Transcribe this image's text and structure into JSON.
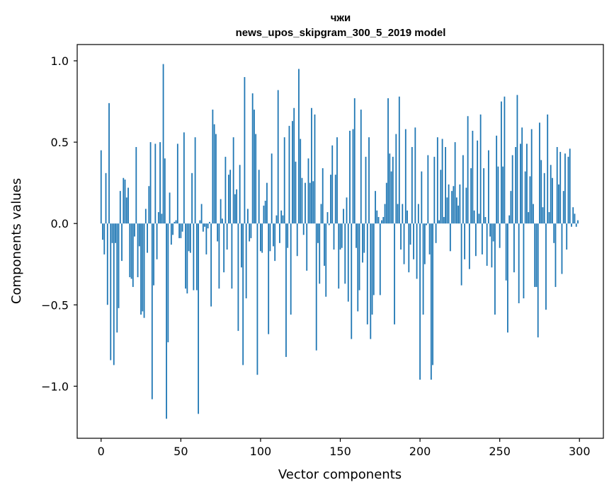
{
  "chart_data": {
    "type": "bar",
    "title": "чжи",
    "subtitle": "news_upos_skipgram_300_5_2019 model",
    "xlabel": "Vector components",
    "ylabel": "Components values",
    "xlim": [
      -15,
      315
    ],
    "ylim": [
      -1.32,
      1.1
    ],
    "xticks": [
      0,
      50,
      100,
      150,
      200,
      250,
      300
    ],
    "yticks": [
      -1.0,
      -0.5,
      0.0,
      0.5,
      1.0
    ],
    "xtick_labels": [
      "0",
      "50",
      "100",
      "150",
      "200",
      "250",
      "300"
    ],
    "ytick_labels": [
      "−1.0",
      "−0.5",
      "0.0",
      "0.5",
      "1.0"
    ],
    "grid": false,
    "color": "#1f77b4",
    "values": [
      0.45,
      -0.1,
      -0.19,
      0.31,
      -0.5,
      0.74,
      -0.84,
      -0.12,
      -0.87,
      -0.12,
      -0.67,
      -0.52,
      0.2,
      -0.23,
      0.28,
      0.27,
      0.16,
      0.22,
      -0.33,
      -0.34,
      -0.39,
      -0.08,
      0.47,
      -0.33,
      -0.14,
      -0.56,
      -0.54,
      -0.58,
      0.09,
      -0.18,
      0.23,
      0.5,
      -1.08,
      -0.38,
      0.49,
      -0.22,
      0.07,
      0.5,
      0.06,
      0.98,
      0.4,
      -1.2,
      -0.73,
      0.19,
      -0.13,
      -0.07,
      0.01,
      0.02,
      0.49,
      -0.09,
      -0.09,
      -0.05,
      0.56,
      -0.4,
      -0.43,
      -0.17,
      -0.18,
      0.31,
      -0.41,
      0.53,
      -0.41,
      -1.17,
      0.02,
      0.12,
      -0.05,
      -0.02,
      -0.19,
      -0.03,
      0.01,
      -0.51,
      0.7,
      0.61,
      0.55,
      -0.11,
      -0.4,
      0.15,
      0.03,
      -0.3,
      0.41,
      -0.16,
      0.3,
      0.33,
      -0.4,
      0.53,
      0.18,
      0.21,
      -0.66,
      0.36,
      -0.27,
      -0.87,
      0.9,
      -0.46,
      0.09,
      -0.11,
      -0.09,
      0.8,
      0.7,
      0.55,
      -0.93,
      0.33,
      -0.17,
      -0.18,
      0.11,
      0.14,
      0.25,
      -0.68,
      -0.17,
      0.43,
      -0.14,
      -0.23,
      0.05,
      0.82,
      -0.12,
      0.08,
      0.05,
      0.53,
      -0.82,
      -0.15,
      0.6,
      -0.56,
      0.63,
      0.71,
      0.38,
      -0.2,
      0.95,
      0.52,
      0.28,
      -0.07,
      0.25,
      -0.29,
      0.4,
      0.25,
      0.71,
      0.26,
      0.67,
      -0.78,
      -0.12,
      -0.37,
      0.12,
      0.34,
      -0.26,
      -0.45,
      0.07,
      -0.01,
      0.3,
      0.48,
      -0.16,
      0.3,
      0.53,
      -0.4,
      -0.16,
      -0.15,
      0.09,
      -0.37,
      0.16,
      -0.48,
      0.57,
      -0.71,
      0.58,
      0.77,
      -0.15,
      -0.54,
      -0.41,
      0.7,
      -0.24,
      -0.18,
      0.41,
      -0.62,
      0.53,
      -0.71,
      -0.56,
      -0.44,
      0.2,
      0.08,
      0.04,
      -0.44,
      0.02,
      0.04,
      0.12,
      0.25,
      0.77,
      0.43,
      0.32,
      0.41,
      -0.62,
      0.55,
      0.12,
      0.78,
      -0.16,
      0.12,
      -0.25,
      0.58,
      0.08,
      -0.3,
      -0.13,
      0.47,
      -0.22,
      0.59,
      -0.34,
      0.12,
      -0.96,
      0.32,
      -0.56,
      -0.25,
      -0.01,
      0.42,
      -0.19,
      -0.96,
      -0.87,
      0.41,
      -0.12,
      0.53,
      0.02,
      0.33,
      0.52,
      0.04,
      0.47,
      0.16,
      0.24,
      -0.17,
      0.2,
      0.23,
      0.5,
      0.16,
      0.11,
      0.24,
      -0.38,
      0.42,
      -0.22,
      0.22,
      0.66,
      -0.28,
      0.34,
      0.57,
      0.08,
      -0.2,
      0.51,
      0.06,
      0.67,
      -0.19,
      0.34,
      0.04,
      -0.26,
      0.45,
      -0.08,
      -0.27,
      -0.11,
      -0.56,
      0.54,
      0.35,
      -0.15,
      0.75,
      0.35,
      0.78,
      -0.35,
      -0.67,
      0.05,
      0.2,
      0.42,
      -0.3,
      0.47,
      0.79,
      -0.49,
      0.49,
      0.59,
      -0.46,
      0.32,
      0.49,
      0.07,
      0.29,
      0.58,
      0.12,
      -0.39,
      -0.39,
      -0.7,
      0.62,
      0.39,
      0.1,
      0.31,
      -0.53,
      0.67,
      0.07,
      0.36,
      0.28,
      -0.12,
      -0.39,
      0.47,
      0.24,
      0.44,
      -0.31,
      0.2,
      0.43,
      -0.16,
      0.41,
      0.46,
      -0.02,
      0.1,
      0.06,
      -0.02,
      0.02
    ]
  }
}
